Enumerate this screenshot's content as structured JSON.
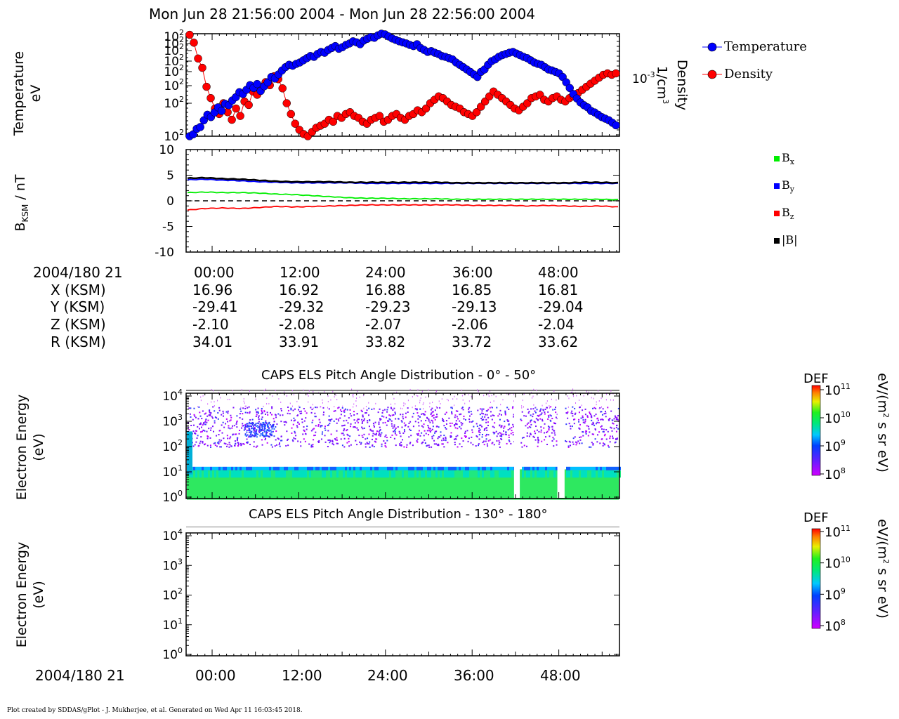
{
  "page_title": "Mon Jun 28 21:56:00 2004 - Mon Jun 28 22:56:00 2004",
  "footer": "Plot created by SDDAS/gPlot - J. Mukherjee, et al.  Generated on Wed Apr 11 16:03:45 2018.",
  "chart_data": [
    {
      "type": "scatter",
      "panel": "plasma-moments",
      "ylabel": "Temperature\neV",
      "ylabel_right": "Density\n1/cm3",
      "y_tick_labels": [
        "10",
        "10",
        "10",
        "10",
        "10",
        "10",
        "10",
        "10"
      ],
      "y_tick_exponent": "2",
      "y2_tick_label": "10",
      "y2_tick_exponent": "-3",
      "series": [
        {
          "name": "Temperature",
          "color": "#0000ff",
          "values": [
            100,
            102,
            108,
            110,
            118,
            125,
            122,
            128,
            135,
            130,
            140,
            138,
            145,
            150,
            158,
            155,
            162,
            170,
            165,
            172,
            160,
            168,
            175,
            185,
            182,
            190,
            198,
            205,
            210,
            208,
            212,
            215,
            220,
            225,
            230,
            228,
            235,
            240,
            238,
            245,
            250,
            255,
            248,
            252,
            258,
            262,
            268,
            265,
            260,
            270,
            275,
            280,
            278,
            285,
            290,
            288,
            282,
            276,
            272,
            268,
            265,
            262,
            258,
            255,
            260,
            250,
            245,
            240,
            242,
            238,
            235,
            230,
            228,
            225,
            222,
            215,
            210,
            205,
            200,
            195,
            190,
            185,
            195,
            200,
            210,
            218,
            222,
            228,
            232,
            235,
            238,
            240,
            236,
            232,
            228,
            225,
            220,
            215,
            212,
            210,
            205,
            200,
            198,
            195,
            192,
            185,
            175,
            165,
            155,
            148,
            142,
            138,
            135,
            130,
            128,
            125,
            122,
            120,
            118,
            115,
            112
          ]
        },
        {
          "name": "Density",
          "color": "#ff0000",
          "values": [
            0.00135,
            0.00128,
            0.00115,
            0.00108,
            0.00095,
            0.00088,
            0.00082,
            0.00079,
            0.00085,
            0.0008,
            0.00076,
            0.00082,
            0.00078,
            0.00086,
            0.00084,
            0.00092,
            0.0009,
            0.00095,
            0.00098,
            0.00096,
            0.00102,
            0.001,
            0.00094,
            0.00085,
            0.00079,
            0.00074,
            0.00071,
            0.00069,
            0.00068,
            0.0007,
            0.00072,
            0.00073,
            0.00074,
            0.00076,
            0.00075,
            0.00078,
            0.00077,
            0.00079,
            0.0008,
            0.00078,
            0.00077,
            0.00075,
            0.00074,
            0.00076,
            0.00077,
            0.00078,
            0.00075,
            0.00076,
            0.00078,
            0.00079,
            0.00077,
            0.00076,
            0.00078,
            0.00079,
            0.00081,
            0.0008,
            0.00082,
            0.00085,
            0.00087,
            0.00089,
            0.00088,
            0.00086,
            0.00084,
            0.00083,
            0.00082,
            0.0008,
            0.00079,
            0.00078,
            0.0008,
            0.00083,
            0.00086,
            0.00089,
            0.00092,
            0.0009,
            0.00088,
            0.00086,
            0.00084,
            0.00082,
            0.00081,
            0.00083,
            0.00085,
            0.00088,
            0.00089,
            0.0009,
            0.00087,
            0.00086,
            0.00088,
            0.00089,
            0.00087,
            0.00086,
            0.00088,
            0.00089,
            0.00091,
            0.00093,
            0.00095,
            0.00097,
            0.00099,
            0.00101,
            0.00103,
            0.00104,
            0.00103,
            0.00104
          ]
        }
      ]
    },
    {
      "type": "line",
      "panel": "magnetic-field",
      "ylabel": "B",
      "ylabel_sub": "KSM",
      "ylabel_suffix": " / nT",
      "ylim": [
        -10,
        10
      ],
      "y_ticks": [
        10,
        5,
        0,
        -5,
        -10
      ],
      "series": [
        {
          "name": "B",
          "name_sub": "x",
          "color": "#00ee00",
          "values": [
            1.6,
            1.7,
            1.6,
            1.6,
            1.5,
            1.3,
            1.2,
            1.0,
            0.8,
            0.6,
            0.5,
            0.5,
            0.4,
            0.4,
            0.4,
            0.3,
            0.3,
            0.3,
            0.3,
            0.3,
            0.3,
            0.3,
            0.3,
            0.3,
            0.2
          ]
        },
        {
          "name": "B",
          "name_sub": "y",
          "color": "#0000ff",
          "values": [
            4.1,
            4.2,
            4.0,
            3.9,
            3.7,
            3.6,
            3.5,
            3.5,
            3.5,
            3.5,
            3.4,
            3.4,
            3.4,
            3.4,
            3.4,
            3.4,
            3.4,
            3.4,
            3.4,
            3.4,
            3.4,
            3.4,
            3.4,
            3.4,
            3.4
          ]
        },
        {
          "name": "B",
          "name_sub": "z",
          "color": "#ff0000",
          "values": [
            -1.8,
            -1.5,
            -1.4,
            -1.5,
            -1.3,
            -1.1,
            -1.2,
            -1.1,
            -1.0,
            -0.9,
            -0.8,
            -0.8,
            -0.8,
            -0.8,
            -0.8,
            -0.8,
            -0.9,
            -0.9,
            -0.9,
            -1.0,
            -0.9,
            -1.0,
            -1.1,
            -1.0,
            -1.2
          ]
        },
        {
          "name": "|B|",
          "color": "#000000",
          "values": [
            4.4,
            4.5,
            4.3,
            4.2,
            4.0,
            3.8,
            3.7,
            3.7,
            3.7,
            3.6,
            3.6,
            3.6,
            3.6,
            3.6,
            3.6,
            3.5,
            3.5,
            3.5,
            3.5,
            3.5,
            3.5,
            3.5,
            3.6,
            3.6,
            3.5
          ]
        }
      ]
    },
    {
      "type": "heatmap",
      "panel": "els-0-50",
      "title": "CAPS ELS Pitch Angle Distribution - 0° - 50°",
      "ylabel": "Electron Energy\n(eV)",
      "y_scale": "log",
      "ylim": [
        1,
        10000
      ],
      "y_tick_exponents": [
        "4",
        "3",
        "2",
        "1",
        "0"
      ],
      "colorbar_label": "DEF",
      "colorbar_units": "eV/(m2 s sr eV)",
      "colorbar_tick_exponents": [
        "11",
        "10",
        "9",
        "8"
      ],
      "data_gaps_minutes": [
        [
          41.8,
          42.6
        ],
        [
          47.8,
          48.8
        ]
      ]
    },
    {
      "type": "heatmap",
      "panel": "els-130-180",
      "title": "CAPS ELS Pitch Angle Distribution - 130° - 180°",
      "ylabel": "Electron Energy\n(eV)",
      "y_scale": "log",
      "ylim": [
        1,
        10000
      ],
      "y_tick_exponents": [
        "4",
        "3",
        "2",
        "1",
        "0"
      ],
      "colorbar_label": "DEF",
      "colorbar_units": "eV/(m2 s sr eV)",
      "colorbar_tick_exponents": [
        "11",
        "10",
        "9",
        "8"
      ]
    }
  ],
  "ephemeris": {
    "date_label": "2004/180 21",
    "times": [
      "00:00",
      "12:00",
      "24:00",
      "36:00",
      "48:00"
    ],
    "rows": [
      {
        "label": "X (KSM)",
        "values": [
          "16.96",
          "16.92",
          "16.88",
          "16.85",
          "16.81"
        ]
      },
      {
        "label": "Y (KSM)",
        "values": [
          "-29.41",
          "-29.32",
          "-29.23",
          "-29.13",
          "-29.04"
        ]
      },
      {
        "label": "Z (KSM)",
        "values": [
          "-2.10",
          "-2.08",
          "-2.07",
          "-2.06",
          "-2.04"
        ]
      },
      {
        "label": "R (KSM)",
        "values": [
          "34.01",
          "33.91",
          "33.82",
          "33.72",
          "33.62"
        ]
      }
    ]
  },
  "bottom_axis": {
    "date_label": "2004/180 21",
    "times": [
      "00:00",
      "12:00",
      "24:00",
      "36:00",
      "48:00"
    ]
  }
}
